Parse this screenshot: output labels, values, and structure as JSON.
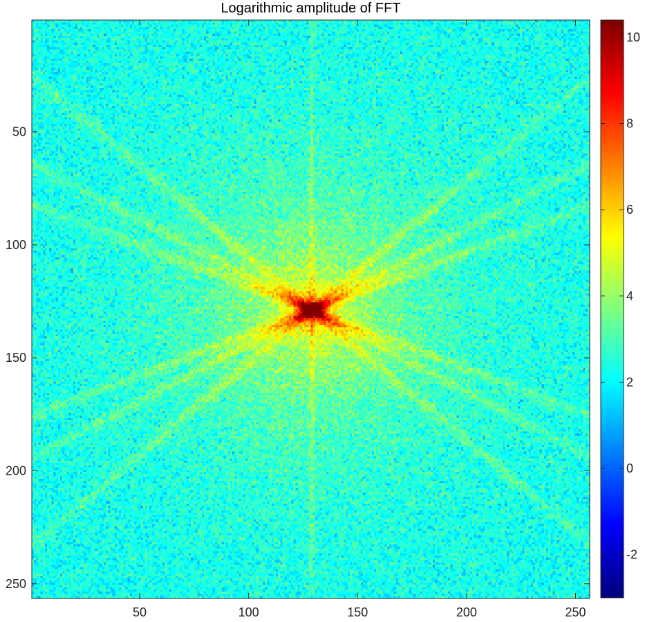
{
  "chart_data": {
    "type": "heatmap",
    "title": "Logarithmic amplitude of FFT",
    "xlabel": "",
    "ylabel": "",
    "width": 256,
    "height": 256,
    "xlim": [
      0.5,
      256.5
    ],
    "ylim": [
      0.5,
      256.5
    ],
    "y_direction": "reverse",
    "x_ticks": [
      50,
      100,
      150,
      200,
      250
    ],
    "y_ticks": [
      50,
      100,
      150,
      200,
      250
    ],
    "colormap": "jet",
    "clim": [
      -3.0,
      10.4
    ],
    "colorbar": {
      "ticks": [
        -2,
        0,
        2,
        4,
        6,
        8,
        10
      ],
      "location": "right"
    },
    "center_peak": {
      "x": 129,
      "y": 129,
      "value": 10.2
    },
    "background_mean": 2.2,
    "vertical_streak_x": 129,
    "streaks_angles_deg": [
      -20,
      20,
      39,
      -39,
      27,
      -27
    ]
  },
  "colors": {
    "axes_frame": "#262626",
    "jet_low": "#00008f",
    "jet_mid": "#80ff80",
    "jet_high": "#800000"
  }
}
